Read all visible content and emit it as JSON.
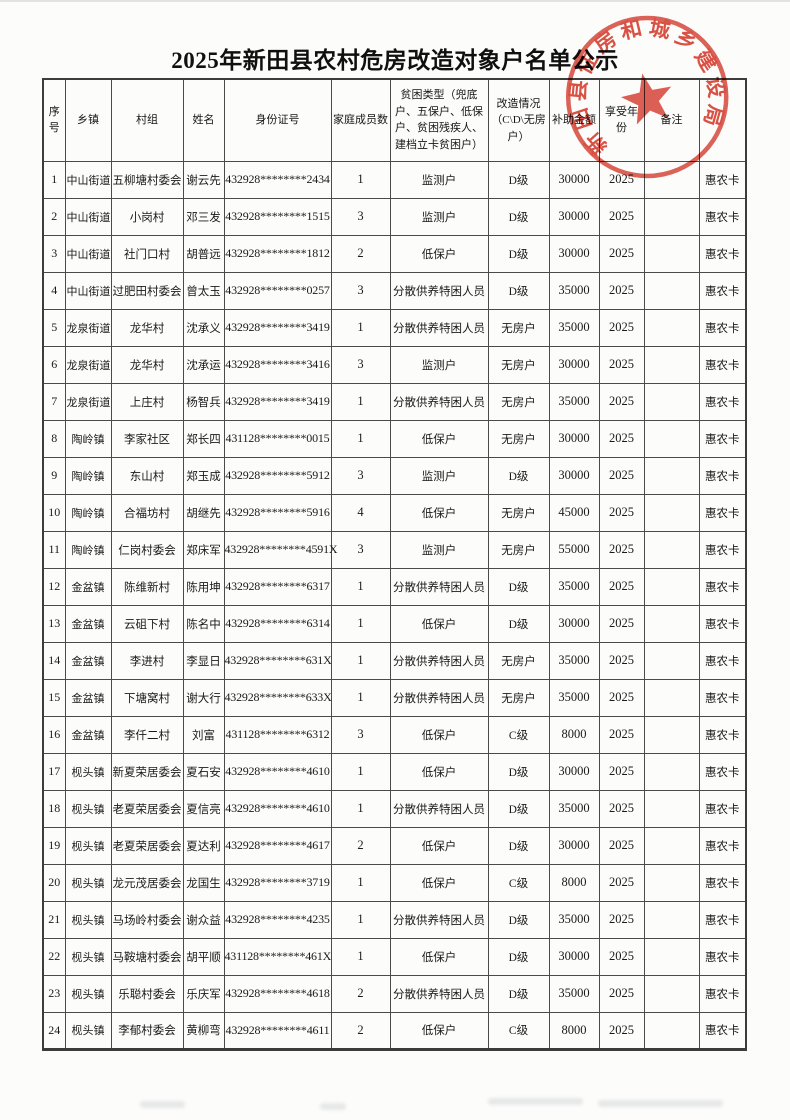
{
  "page": {
    "title": "2025年新田县农村危房改造对象户名单公示"
  },
  "seal": {
    "text": "新田县住房和城乡建设局",
    "color": "#d63a2c"
  },
  "table": {
    "column_keys": [
      "no",
      "township",
      "village",
      "name",
      "id_number",
      "family_members",
      "poverty_type",
      "renovation_type",
      "subsidy_amount",
      "benefit_year",
      "remarks",
      "card"
    ],
    "headers": [
      "序号",
      "乡镇",
      "村组",
      "姓名",
      "身份证号",
      "家庭成员数",
      "贫困类型（兜底户、五保户、低保户、贫困残疾人、建档立卡贫困户）",
      "改造情况（C\\D\\无房户）",
      "补助金额",
      "享受年份",
      "备注",
      ""
    ],
    "rows": [
      [
        "1",
        "中山街道",
        "五柳塘村委会",
        "谢云先",
        "432928********2434",
        "1",
        "监测户",
        "D级",
        "30000",
        "2025",
        "",
        "惠农卡"
      ],
      [
        "2",
        "中山街道",
        "小岗村",
        "邓三发",
        "432928********1515",
        "3",
        "监测户",
        "D级",
        "30000",
        "2025",
        "",
        "惠农卡"
      ],
      [
        "3",
        "中山街道",
        "社门口村",
        "胡普远",
        "432928********1812",
        "2",
        "低保户",
        "D级",
        "30000",
        "2025",
        "",
        "惠农卡"
      ],
      [
        "4",
        "中山街道",
        "过肥田村委会",
        "曾太玉",
        "432928********0257",
        "3",
        "分散供养特困人员",
        "D级",
        "35000",
        "2025",
        "",
        "惠农卡"
      ],
      [
        "5",
        "龙泉街道",
        "龙华村",
        "沈承义",
        "432928********3419",
        "1",
        "分散供养特困人员",
        "无房户",
        "35000",
        "2025",
        "",
        "惠农卡"
      ],
      [
        "6",
        "龙泉街道",
        "龙华村",
        "沈承运",
        "432928********3416",
        "3",
        "监测户",
        "无房户",
        "30000",
        "2025",
        "",
        "惠农卡"
      ],
      [
        "7",
        "龙泉街道",
        "上庄村",
        "杨智兵",
        "432928********3419",
        "1",
        "分散供养特困人员",
        "无房户",
        "35000",
        "2025",
        "",
        "惠农卡"
      ],
      [
        "8",
        "陶岭镇",
        "李家社区",
        "郑长四",
        "431128********0015",
        "1",
        "低保户",
        "无房户",
        "30000",
        "2025",
        "",
        "惠农卡"
      ],
      [
        "9",
        "陶岭镇",
        "东山村",
        "郑玉成",
        "432928********5912",
        "3",
        "监测户",
        "D级",
        "30000",
        "2025",
        "",
        "惠农卡"
      ],
      [
        "10",
        "陶岭镇",
        "合福坊村",
        "胡继先",
        "432928********5916",
        "4",
        "低保户",
        "无房户",
        "45000",
        "2025",
        "",
        "惠农卡"
      ],
      [
        "11",
        "陶岭镇",
        "仁岗村委会",
        "郑床军",
        "432928********4591X",
        "3",
        "监测户",
        "无房户",
        "55000",
        "2025",
        "",
        "惠农卡"
      ],
      [
        "12",
        "金盆镇",
        "陈维新村",
        "陈用坤",
        "432928********6317",
        "1",
        "分散供养特困人员",
        "D级",
        "35000",
        "2025",
        "",
        "惠农卡"
      ],
      [
        "13",
        "金盆镇",
        "云砠下村",
        "陈名中",
        "432928********6314",
        "1",
        "低保户",
        "D级",
        "30000",
        "2025",
        "",
        "惠农卡"
      ],
      [
        "14",
        "金盆镇",
        "李进村",
        "李显日",
        "432928********631X",
        "1",
        "分散供养特困人员",
        "无房户",
        "35000",
        "2025",
        "",
        "惠农卡"
      ],
      [
        "15",
        "金盆镇",
        "下塘窝村",
        "谢大行",
        "432928********633X",
        "1",
        "分散供养特困人员",
        "无房户",
        "35000",
        "2025",
        "",
        "惠农卡"
      ],
      [
        "16",
        "金盆镇",
        "李仟二村",
        "刘富",
        "431128********6312",
        "3",
        "低保户",
        "C级",
        "8000",
        "2025",
        "",
        "惠农卡"
      ],
      [
        "17",
        "枧头镇",
        "新夏荣居委会",
        "夏石安",
        "432928********4610",
        "1",
        "低保户",
        "D级",
        "30000",
        "2025",
        "",
        "惠农卡"
      ],
      [
        "18",
        "枧头镇",
        "老夏荣居委会",
        "夏信亮",
        "432928********4610",
        "1",
        "分散供养特困人员",
        "D级",
        "35000",
        "2025",
        "",
        "惠农卡"
      ],
      [
        "19",
        "枧头镇",
        "老夏荣居委会",
        "夏达利",
        "432928********4617",
        "2",
        "低保户",
        "D级",
        "30000",
        "2025",
        "",
        "惠农卡"
      ],
      [
        "20",
        "枧头镇",
        "龙元茂居委会",
        "龙国生",
        "432928********3719",
        "1",
        "低保户",
        "C级",
        "8000",
        "2025",
        "",
        "惠农卡"
      ],
      [
        "21",
        "枧头镇",
        "马场岭村委会",
        "谢众益",
        "432928********4235",
        "1",
        "分散供养特困人员",
        "D级",
        "35000",
        "2025",
        "",
        "惠农卡"
      ],
      [
        "22",
        "枧头镇",
        "马鞍塘村委会",
        "胡平顺",
        "431128********461X",
        "1",
        "低保户",
        "D级",
        "30000",
        "2025",
        "",
        "惠农卡"
      ],
      [
        "23",
        "枧头镇",
        "乐聪村委会",
        "乐庆军",
        "432928********4618",
        "2",
        "分散供养特困人员",
        "D级",
        "35000",
        "2025",
        "",
        "惠农卡"
      ],
      [
        "24",
        "枧头镇",
        "李郁村委会",
        "黄柳弯",
        "432928********4611",
        "2",
        "低保户",
        "C级",
        "8000",
        "2025",
        "",
        "惠农卡"
      ]
    ]
  }
}
